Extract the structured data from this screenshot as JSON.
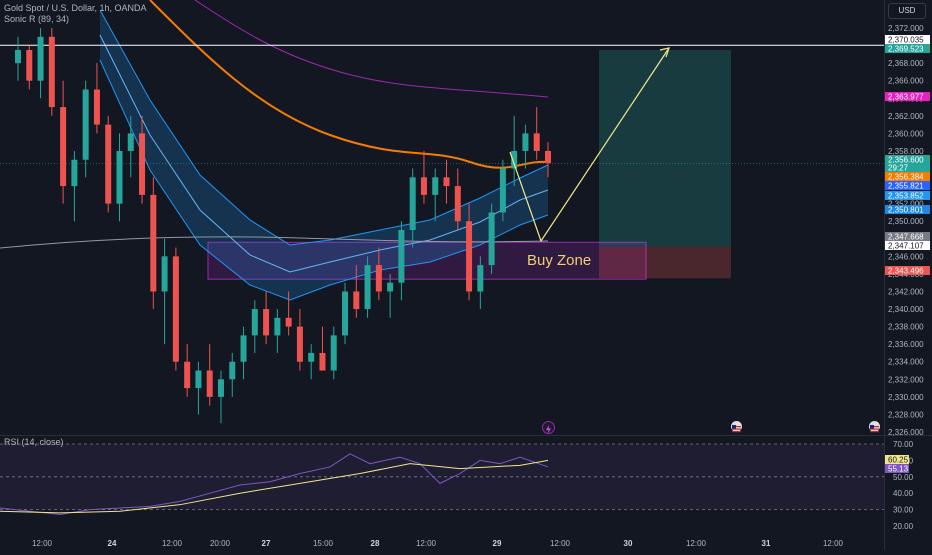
{
  "chart_title": "Gold Spot / U.S. Dollar, 1h, OANDA",
  "indicator_sonic": "Sonic R (89, 34)",
  "indicator_rsi": "RSI (14, close)",
  "currency": "USD",
  "annotation_buy_zone": "Buy Zone",
  "chart_data": [
    {
      "type": "candlestick",
      "title": "Gold Spot / U.S. Dollar, 1h, OANDA",
      "y_ticks": [
        2326,
        2328,
        2330,
        2332,
        2334,
        2336,
        2338,
        2340,
        2342,
        2344,
        2346,
        2348,
        2350,
        2352,
        2354,
        2356,
        2358,
        2360,
        2362,
        2364,
        2366,
        2368,
        2370,
        2372
      ],
      "x_ticks": [
        "12:00",
        "24",
        "12:00",
        "20:00",
        "27",
        "15:00",
        "28",
        "12:00",
        "29",
        "12:00",
        "30",
        "12:00",
        "31",
        "12:00"
      ],
      "price_labels": [
        {
          "value": "2,370.035",
          "color": "#ffffff",
          "text_color": "#131722"
        },
        {
          "value": "2,369.523",
          "color": "#26a69a",
          "text_color": "#ffffff"
        },
        {
          "value": "2,363.977",
          "color": "#e91ebe",
          "text_color": "#ffffff"
        },
        {
          "value": "2,356.600",
          "color": "#26a69a",
          "text_color": "#ffffff"
        },
        {
          "value": "29:27",
          "color": "#26a69a",
          "text_color": "#ffffff"
        },
        {
          "value": "2,356.384",
          "color": "#f57c00",
          "text_color": "#ffffff"
        },
        {
          "value": "2,355.821",
          "color": "#2962ff",
          "text_color": "#ffffff"
        },
        {
          "value": "2,353.852",
          "color": "#2196f3",
          "text_color": "#ffffff"
        },
        {
          "value": "2,350.801",
          "color": "#1e88e5",
          "text_color": "#ffffff"
        },
        {
          "value": "2,347.668",
          "color": "#787b86",
          "text_color": "#ffffff"
        },
        {
          "value": "2,347.107",
          "color": "#ffffff",
          "text_color": "#131722"
        },
        {
          "value": "2,343.496",
          "color": "#ef5350",
          "text_color": "#ffffff"
        }
      ],
      "horizontal_line": 2370.035,
      "buy_zone_range": [
        2343.4,
        2347.6
      ],
      "position": {
        "entry": 2347.1,
        "target": 2369.5,
        "stop": 2343.5
      },
      "moving_averages": [
        "orange",
        "purple",
        "gray",
        "blue band"
      ]
    },
    {
      "type": "line",
      "title": "RSI (14, close)",
      "y_ticks": [
        20,
        30,
        40,
        50,
        60,
        70
      ],
      "value_labels": [
        {
          "value": "60.25",
          "color": "#f0e68c",
          "text_color": "#131722"
        },
        {
          "value": "55.13",
          "color": "#7e57c2",
          "text_color": "#ffffff"
        }
      ],
      "overbought": 70,
      "oversold": 30
    }
  ],
  "colors": {
    "background": "#131722",
    "up": "#26a69a",
    "down": "#ef5350",
    "grid": "#1f2430",
    "text": "#b2b5be"
  }
}
